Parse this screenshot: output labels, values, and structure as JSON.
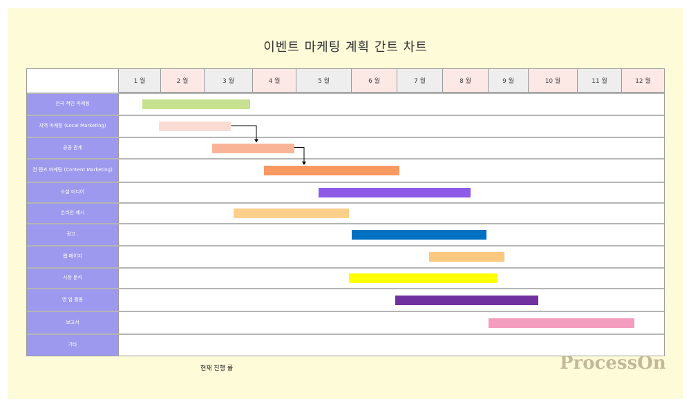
{
  "title": "이벤트 마케팅 계획 간트 차트",
  "months": [
    {
      "label": "1 월",
      "color": "#eeeeee"
    },
    {
      "label": "2 월",
      "color": "#fce9e6"
    },
    {
      "label": "3 월",
      "color": "#eeeeee"
    },
    {
      "label": "4 월",
      "color": "#fce9e6"
    },
    {
      "label": "5 월",
      "color": "#eeeeee"
    },
    {
      "label": "6 월",
      "color": "#fce9e6"
    },
    {
      "label": "7 월",
      "color": "#eeeeee"
    },
    {
      "label": "8 월",
      "color": "#fce9e6"
    },
    {
      "label": "9 월",
      "color": "#eeeeee"
    },
    {
      "label": "10 월",
      "color": "#fce9e6"
    },
    {
      "label": "11 월",
      "color": "#eeeeee"
    },
    {
      "label": "12 월",
      "color": "#fce9e6"
    }
  ],
  "tasks": [
    {
      "label": "전국 적인 마케팅",
      "start": 1.55,
      "end": 3.95,
      "color": "#c6e190"
    },
    {
      "label": "지역 마케팅 (Local Marketing)",
      "start": 1.95,
      "end": 3.55,
      "color": "#fbdcd4"
    },
    {
      "label": "공공 관계",
      "start": 3.15,
      "end": 4.95,
      "color": "#f9b497"
    },
    {
      "label": "컨 텐츠 마케팅 (Content Marketing)",
      "start": 4.25,
      "end": 7.05,
      "color": "#f79961"
    },
    {
      "label": "소셜 미디어",
      "start": 5.4,
      "end": 8.6,
      "color": "#8d5be7"
    },
    {
      "label": "온라인 예시",
      "start": 3.6,
      "end": 5.95,
      "color": "#fcd08b"
    },
    {
      "label": "광고 .",
      "start": 6.0,
      "end": 8.95,
      "color": "#0070c0"
    },
    {
      "label": "웹 페이지",
      "start": 7.7,
      "end": 9.4,
      "color": "#fcc77e"
    },
    {
      "label": "시장 분석",
      "start": 5.95,
      "end": 9.2,
      "color": "#ffff00"
    },
    {
      "label": "영 업 활동",
      "start": 6.95,
      "end": 10.2,
      "color": "#7030a0"
    },
    {
      "label": "보고서",
      "start": 9.0,
      "end": 12.3,
      "color": "#f49cbd"
    },
    {
      "label": "기타",
      "start": null,
      "end": null,
      "color": null
    }
  ],
  "dependencies": [
    {
      "from": 1,
      "to": 2
    },
    {
      "from": 2,
      "to": 3
    }
  ],
  "legend_text": "현재 진행 률",
  "watermark": "ProcessOn"
}
